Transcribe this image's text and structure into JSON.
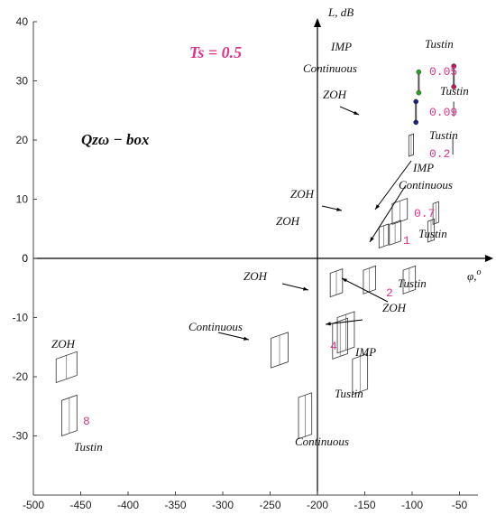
{
  "chart_data": {
    "type": "scatter",
    "title": "",
    "xlabel": "φ,o",
    "ylabel": "L, dB",
    "xlim": [
      -500,
      -40
    ],
    "ylim": [
      -40,
      40
    ],
    "xticks": [
      -500,
      -450,
      -400,
      -350,
      -300,
      -250,
      -200,
      -150,
      -100,
      -50
    ],
    "yticks": [
      -30,
      -20,
      -10,
      0,
      10,
      20,
      30,
      40
    ],
    "annotations": {
      "ts": "Ts = 0.5",
      "qbox": "Qzω − box",
      "periods": [
        "0.05",
        "0.09",
        "0.2",
        "0.7",
        "1",
        "2",
        "4",
        "8"
      ],
      "method_labels": [
        "Tustin",
        "Tustin",
        "Tustin",
        "Tustin",
        "Tustin",
        "Tustin",
        "Tustin",
        "Continuous",
        "IMP",
        "Continuous",
        "ZOH",
        "ZOH",
        "IMP",
        "Continuous",
        "ZOH",
        "ZOH",
        "ZOH",
        "IMP",
        "Continuous",
        "ZOH"
      ]
    },
    "series": [
      {
        "name": "Continuous",
        "marker_color": "#2ca02c",
        "points": [
          {
            "x": -93,
            "y": 31.5
          },
          {
            "x": -93,
            "y": 28.0
          }
        ]
      },
      {
        "name": "ZOH",
        "marker_color": "#1a237e",
        "points": [
          {
            "x": -96,
            "y": 26.5
          },
          {
            "x": -96,
            "y": 23.0
          }
        ]
      },
      {
        "name": "Tustin",
        "marker_color": "#c2185b",
        "points": [
          {
            "x": -56,
            "y": 32.5
          },
          {
            "x": -56,
            "y": 29.0
          }
        ]
      }
    ],
    "boxes": [
      {
        "cx": -101,
        "cy": 19,
        "w": 5,
        "h": 3.5
      },
      {
        "cx": -75,
        "cy": 7.5,
        "w": 6,
        "h": 3.5
      },
      {
        "cx": -80,
        "cy": 4.5,
        "w": 7,
        "h": 3.5
      },
      {
        "cx": -113,
        "cy": 7.5,
        "w": 16,
        "h": 3.5
      },
      {
        "cx": -118,
        "cy": 4.0,
        "w": 12,
        "h": 3.5
      },
      {
        "cx": -130,
        "cy": 3.5,
        "w": 10,
        "h": 3.5
      },
      {
        "cx": -180,
        "cy": -4.5,
        "w": 13,
        "h": 4
      },
      {
        "cx": -145,
        "cy": -4,
        "w": 13,
        "h": 4
      },
      {
        "cx": -103,
        "cy": -4,
        "w": 13,
        "h": 4
      },
      {
        "cx": -170,
        "cy": -13,
        "w": 18,
        "h": 6
      },
      {
        "cx": -176,
        "cy": -14,
        "w": 16,
        "h": 6
      },
      {
        "cx": -155,
        "cy": -20,
        "w": 16,
        "h": 6
      },
      {
        "cx": -240,
        "cy": -16,
        "w": 18,
        "h": 5
      },
      {
        "cx": -213,
        "cy": -27,
        "w": 14,
        "h": 7
      },
      {
        "cx": -465,
        "cy": -19,
        "w": 22,
        "h": 4
      },
      {
        "cx": -462,
        "cy": -27,
        "w": 16,
        "h": 6
      }
    ]
  }
}
